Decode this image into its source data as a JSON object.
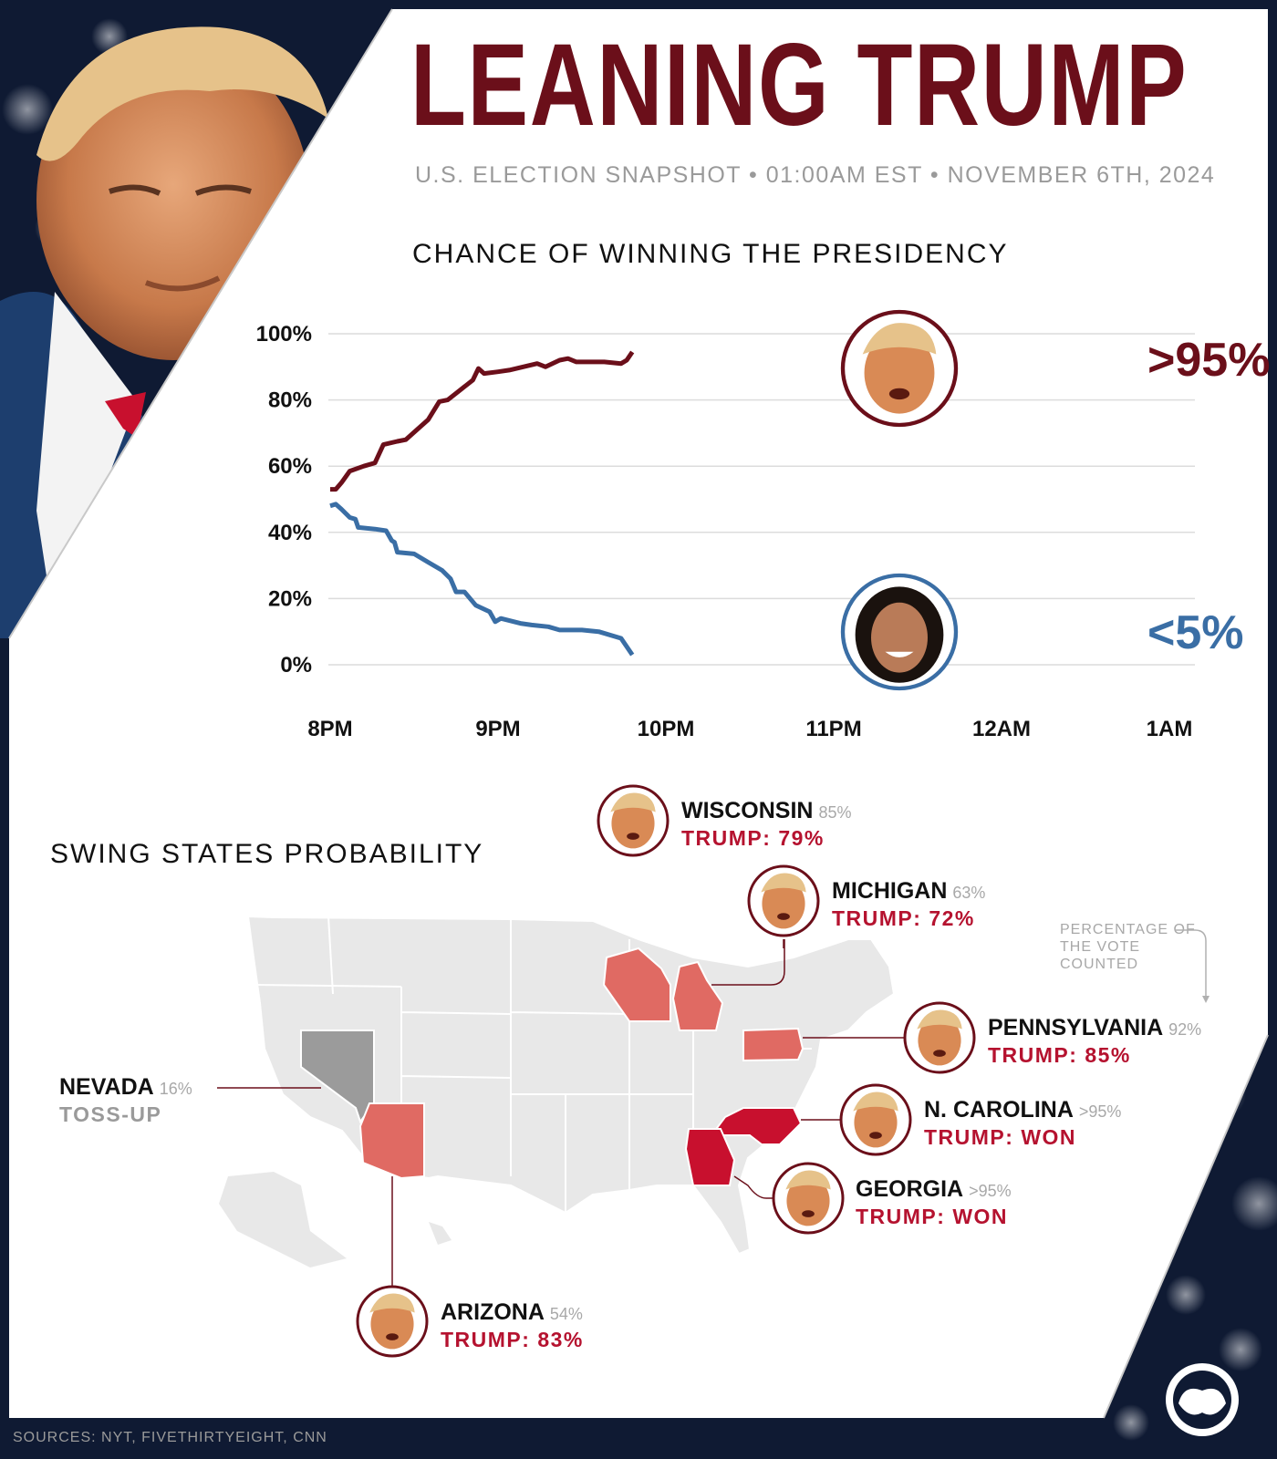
{
  "header": {
    "title": "LEANING TRUMP",
    "subtitle": "U.S. ELECTION SNAPSHOT • 01:00AM EST • NOVEMBER 6TH, 2024"
  },
  "colors": {
    "trump": "#6b0f1a",
    "harris": "#3a6ea5",
    "state_red": "#e06a63",
    "state_dark": "#c8102e",
    "tossup": "#9b9b9b",
    "land": "#e8e8e8"
  },
  "chart_data": {
    "type": "line",
    "title": "CHANCE OF WINNING THE PRESIDENCY",
    "x_ticks": [
      "8PM",
      "9PM",
      "10PM",
      "11PM",
      "12AM",
      "1AM"
    ],
    "y_ticks": [
      "100%",
      "80%",
      "60%",
      "40%",
      "20%",
      "0%"
    ],
    "ylim": [
      0,
      100
    ],
    "grid": true,
    "series": [
      {
        "id": "trump",
        "color": "#6b0f1a",
        "end_label": ">95%",
        "points": [
          [
            0,
            53
          ],
          [
            10,
            53
          ],
          [
            20,
            55
          ],
          [
            35,
            58.5
          ],
          [
            60,
            60
          ],
          [
            80,
            61
          ],
          [
            95,
            66.5
          ],
          [
            120,
            67.5
          ],
          [
            135,
            68
          ],
          [
            155,
            71
          ],
          [
            175,
            74
          ],
          [
            195,
            79.5
          ],
          [
            210,
            80
          ],
          [
            225,
            82
          ],
          [
            255,
            86
          ],
          [
            265,
            89.5
          ],
          [
            275,
            88
          ],
          [
            300,
            88.5
          ],
          [
            320,
            89
          ],
          [
            370,
            91
          ],
          [
            385,
            90
          ],
          [
            410,
            92
          ],
          [
            425,
            92.5
          ],
          [
            440,
            91.5
          ],
          [
            490,
            91.5
          ],
          [
            520,
            91
          ],
          [
            530,
            92
          ],
          [
            540,
            94.5
          ]
        ]
      },
      {
        "id": "harris",
        "color": "#3a6ea5",
        "end_label": "<5%",
        "points": [
          [
            0,
            48
          ],
          [
            10,
            48.5
          ],
          [
            20,
            47
          ],
          [
            35,
            44.5
          ],
          [
            45,
            44
          ],
          [
            50,
            41.5
          ],
          [
            80,
            41
          ],
          [
            100,
            40.5
          ],
          [
            110,
            37.5
          ],
          [
            115,
            37
          ],
          [
            120,
            34
          ],
          [
            150,
            33.5
          ],
          [
            175,
            31
          ],
          [
            200,
            28.5
          ],
          [
            215,
            26
          ],
          [
            225,
            22
          ],
          [
            240,
            22
          ],
          [
            260,
            18
          ],
          [
            285,
            16
          ],
          [
            295,
            13
          ],
          [
            305,
            14
          ],
          [
            340,
            12.5
          ],
          [
            360,
            12
          ],
          [
            390,
            11.5
          ],
          [
            410,
            10.5
          ],
          [
            450,
            10.5
          ],
          [
            480,
            10
          ],
          [
            520,
            8
          ],
          [
            540,
            3
          ]
        ]
      }
    ]
  },
  "map": {
    "title": "SWING STATES PROBABILITY",
    "note": "PERCENTAGE OF THE VOTE COUNTED",
    "states": [
      {
        "id": "wisconsin",
        "name": "WISCONSIN",
        "pct": "85%",
        "result": "TRUMP: 79%"
      },
      {
        "id": "michigan",
        "name": "MICHIGAN",
        "pct": "63%",
        "result": "TRUMP: 72%"
      },
      {
        "id": "pennsylvania",
        "name": "PENNSYLVANIA",
        "pct": "92%",
        "result": "TRUMP: 85%"
      },
      {
        "id": "north-carolina",
        "name": "N. CAROLINA",
        "pct": ">95%",
        "result": "TRUMP: WON"
      },
      {
        "id": "georgia",
        "name": "GEORGIA",
        "pct": ">95%",
        "result": "TRUMP: WON"
      },
      {
        "id": "arizona",
        "name": "ARIZONA",
        "pct": "54%",
        "result": "TRUMP: 83%"
      },
      {
        "id": "nevada",
        "name": "NEVADA",
        "pct": "16%",
        "result": "TOSS-UP"
      }
    ]
  },
  "footer": {
    "sources": "SOURCES: NYT, FIVETHIRTYEIGHT, CNN"
  }
}
